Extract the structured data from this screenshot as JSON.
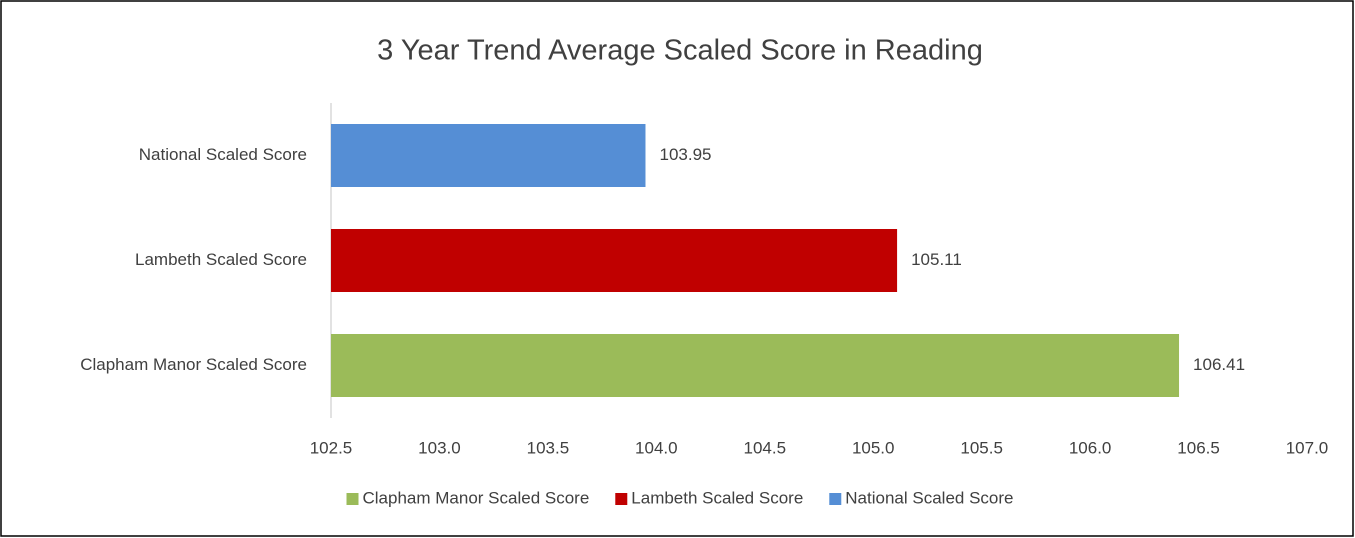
{
  "chart_data": {
    "type": "bar",
    "orientation": "horizontal",
    "title": "3 Year Trend Average Scaled Score in Reading",
    "series": [
      {
        "name": "Clapham Manor Scaled Score",
        "color": "#9bbb59",
        "values": [
          106.41
        ]
      },
      {
        "name": "Lambeth Scaled Score",
        "color": "#c00000",
        "values": [
          105.11
        ]
      },
      {
        "name": "National Scaled Score",
        "color": "#558ed5",
        "values": [
          103.95
        ]
      }
    ],
    "xlim": [
      102.5,
      107.0
    ],
    "xticks": [
      102.5,
      {
        "value": 103,
        "label": "103.0"
      },
      103.5,
      {
        "value": 104,
        "label": "104.0"
      },
      104.5,
      {
        "value": 105,
        "label": "105.0"
      },
      105.5,
      {
        "value": 106,
        "label": "106.0"
      },
      106.5,
      {
        "value": 107,
        "label": "107.0"
      }
    ],
    "grid": false,
    "legend": "bottom"
  }
}
